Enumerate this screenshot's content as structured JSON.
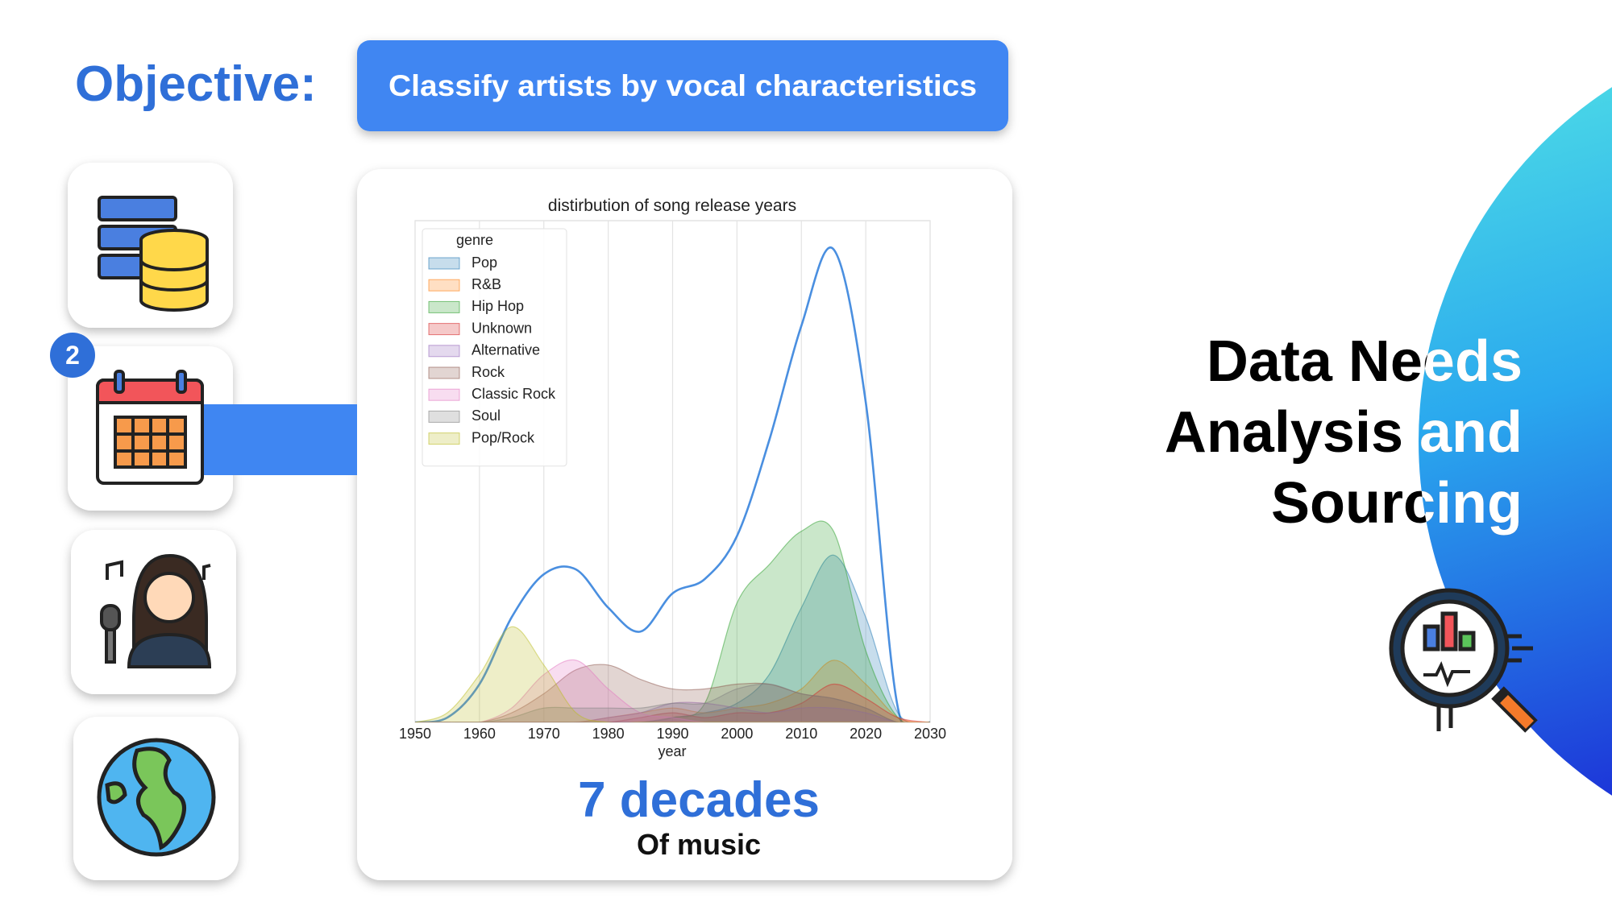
{
  "slide": {
    "objective_label": "Objective:",
    "objective_text": "Classify artists by vocal characteristics",
    "step_badge": "2",
    "heading": [
      "Data Needs",
      "Analysis and",
      "Sourcing"
    ],
    "highlight": {
      "title": "7 decades",
      "subtitle": "Of music"
    }
  },
  "chart_data": {
    "type": "area",
    "title": "distirbution of song release years",
    "x_label": "year",
    "x": [
      1950,
      1955,
      1960,
      1965,
      1970,
      1975,
      1980,
      1985,
      1990,
      1995,
      2000,
      2005,
      2010,
      2015,
      2020,
      2025,
      2030
    ],
    "xlim": [
      1950,
      2030
    ],
    "xticks": [
      1950,
      1960,
      1970,
      1980,
      1990,
      2000,
      2010,
      2020,
      2030
    ],
    "ylim": [
      0,
      105
    ],
    "grid": "x",
    "legend": "upper left",
    "legend_title": "genre",
    "fill_opacity": 0.25,
    "series": [
      {
        "color": "#4a8fe0",
        "fill": false,
        "values": [
          0,
          1,
          8,
          22,
          31,
          32,
          24,
          19,
          27,
          30,
          39,
          59,
          83,
          99,
          67,
          3,
          0
        ]
      },
      {
        "name": "Pop",
        "color": "#1f77b4",
        "values": [
          0,
          0,
          0,
          0,
          0,
          0,
          0,
          0,
          1,
          2,
          4,
          10,
          24,
          35,
          22,
          2,
          0
        ]
      },
      {
        "name": "R&B",
        "color": "#ff7f0e",
        "values": [
          0,
          0,
          0,
          0,
          0,
          0,
          1,
          2,
          3,
          2,
          3,
          4,
          7,
          13,
          8,
          1,
          0
        ]
      },
      {
        "name": "Hip Hop",
        "color": "#2ca02c",
        "values": [
          0,
          0,
          0,
          0,
          0,
          0,
          0,
          0,
          1,
          4,
          25,
          33,
          40,
          40,
          15,
          1,
          0
        ]
      },
      {
        "name": "Unknown",
        "color": "#d62728",
        "values": [
          0,
          0,
          0,
          0,
          0,
          0,
          0,
          1,
          2,
          1,
          2,
          2,
          4,
          8,
          5,
          1,
          0
        ]
      },
      {
        "name": "Alternative",
        "color": "#9467bd",
        "values": [
          0,
          0,
          0,
          0,
          0,
          0,
          1,
          2,
          4,
          4,
          3,
          2,
          3,
          3,
          2,
          0,
          0
        ]
      },
      {
        "name": "Rock",
        "color": "#8c564b",
        "values": [
          0,
          0,
          0,
          2,
          6,
          11,
          12,
          9,
          7,
          7,
          8,
          8,
          6,
          5,
          3,
          0,
          0
        ]
      },
      {
        "name": "Classic Rock",
        "color": "#e377c2",
        "values": [
          0,
          0,
          0,
          3,
          10,
          13,
          7,
          2,
          1,
          0,
          0,
          0,
          0,
          0,
          0,
          0,
          0
        ]
      },
      {
        "name": "Soul",
        "color": "#7f7f7f",
        "values": [
          0,
          0,
          0,
          1,
          3,
          3,
          3,
          3,
          4,
          4,
          7,
          8,
          6,
          5,
          3,
          0,
          0
        ]
      },
      {
        "name": "Pop/Rock",
        "color": "#bcbd22",
        "values": [
          0,
          2,
          10,
          20,
          12,
          2,
          0,
          0,
          0,
          0,
          0,
          0,
          0,
          0,
          0,
          0,
          0
        ]
      }
    ]
  }
}
